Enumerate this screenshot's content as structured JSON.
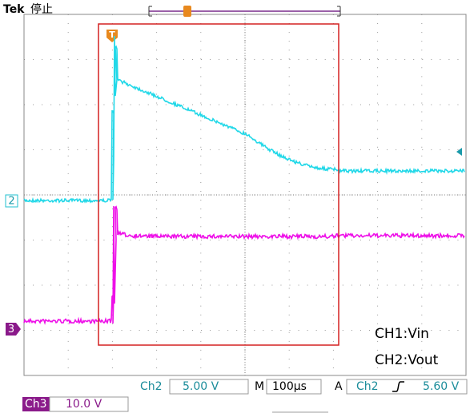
{
  "header": {
    "brand": "Tek",
    "status": "停止",
    "trigger_marker": "T"
  },
  "channel_markers": [
    "2",
    "3"
  ],
  "annotation": [
    "CH1:Vin",
    "CH2:Vout"
  ],
  "readout": {
    "ch2_label": "Ch2",
    "ch2_scale": "5.00 V",
    "time_label": "M",
    "time_scale": "100µs",
    "trigger_mode": "A",
    "trigger_source": "Ch2",
    "trigger_level": "5.60 V",
    "ch3_label": "Ch3",
    "ch3_scale": "10.0 V"
  }
}
